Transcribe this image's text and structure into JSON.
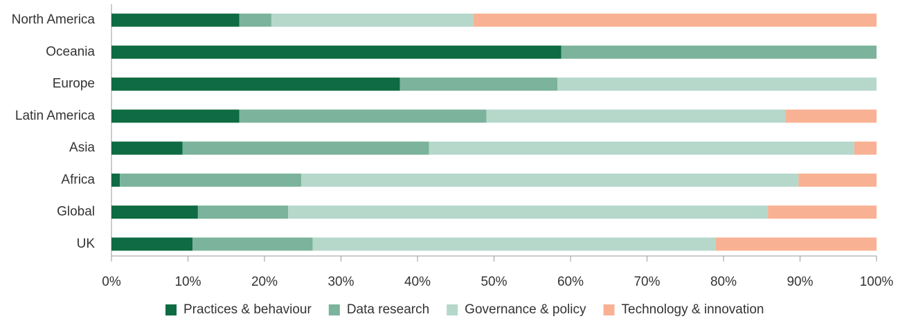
{
  "chart_data": {
    "type": "bar",
    "orientation": "horizontal",
    "stacked": true,
    "categories": [
      "North America",
      "Oceania",
      "Europe",
      "Latin America",
      "Asia",
      "Africa",
      "Global",
      "UK"
    ],
    "series": [
      {
        "name": "Practices & behaviour",
        "color": "#0e6b43",
        "values": [
          16.7,
          58.8,
          37.7,
          16.7,
          9.3,
          1.1,
          11.3,
          10.6
        ]
      },
      {
        "name": "Data research",
        "color": "#7bb39c",
        "values": [
          4.2,
          41.2,
          20.6,
          32.3,
          32.2,
          23.7,
          11.8,
          15.7
        ]
      },
      {
        "name": "Governance & policy",
        "color": "#b5d8cb",
        "values": [
          26.4,
          0,
          41.7,
          39.1,
          55.6,
          65.0,
          62.7,
          52.7
        ]
      },
      {
        "name": "Technology & innovation",
        "color": "#f9b193",
        "values": [
          52.7,
          0,
          0,
          11.9,
          2.9,
          10.2,
          14.2,
          21.0
        ]
      }
    ],
    "xlim": [
      0,
      100
    ],
    "xticks": [
      {
        "value": 0,
        "label": "0%"
      },
      {
        "value": 10,
        "label": "10%"
      },
      {
        "value": 20,
        "label": "20%"
      },
      {
        "value": 30,
        "label": "30%"
      },
      {
        "value": 40,
        "label": "40%"
      },
      {
        "value": 50,
        "label": "50%"
      },
      {
        "value": 60,
        "label": "60%"
      },
      {
        "value": 70,
        "label": "70%"
      },
      {
        "value": 80,
        "label": "80%"
      },
      {
        "value": 90,
        "label": "90%"
      },
      {
        "value": 100,
        "label": "100%"
      }
    ],
    "legend": "bottom"
  }
}
